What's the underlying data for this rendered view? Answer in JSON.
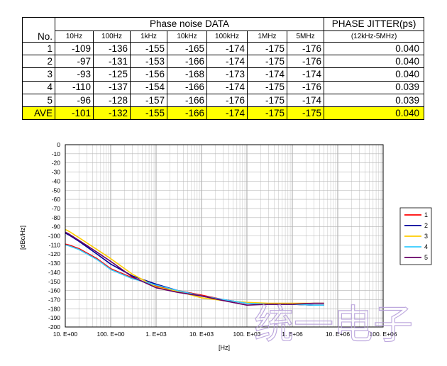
{
  "table": {
    "header_group": "Phase noise DATA",
    "no_label": "No.",
    "jitter_header": "PHASE JITTER(ps)",
    "jitter_range": "(12kHz-5MHz)",
    "columns": [
      "10Hz",
      "100Hz",
      "1kHz",
      "10kHz",
      "100kHz",
      "1MHz",
      "5MHz"
    ],
    "rows": [
      {
        "no": "1",
        "values": [
          "-109",
          "-136",
          "-155",
          "-165",
          "-174",
          "-175",
          "-176"
        ],
        "jitter": "0.040"
      },
      {
        "no": "2",
        "values": [
          "-97",
          "-131",
          "-153",
          "-166",
          "-174",
          "-175",
          "-176"
        ],
        "jitter": "0.040"
      },
      {
        "no": "3",
        "values": [
          "-93",
          "-125",
          "-156",
          "-168",
          "-173",
          "-174",
          "-174"
        ],
        "jitter": "0.040"
      },
      {
        "no": "4",
        "values": [
          "-110",
          "-137",
          "-154",
          "-166",
          "-174",
          "-175",
          "-176"
        ],
        "jitter": "0.039"
      },
      {
        "no": "5",
        "values": [
          "-96",
          "-128",
          "-157",
          "-166",
          "-176",
          "-175",
          "-174"
        ],
        "jitter": "0.039"
      },
      {
        "no": "AVE",
        "values": [
          "-101",
          "-132",
          "-155",
          "-166",
          "-174",
          "-175",
          "-175"
        ],
        "jitter": "0.040",
        "highlight": "#ffff00"
      }
    ]
  },
  "chart_data": {
    "type": "line",
    "xscale": "log",
    "xlim": [
      10,
      100000000
    ],
    "ylim": [
      -200,
      0
    ],
    "y_ticks": [
      "0",
      "-10",
      "-20",
      "-30",
      "-40",
      "-50",
      "-60",
      "-70",
      "-80",
      "-90",
      "-100",
      "-110",
      "-120",
      "-130",
      "-140",
      "-150",
      "-160",
      "-170",
      "-180",
      "-190",
      "-200"
    ],
    "x_ticks": [
      "10. E+00",
      "100. E+00",
      "1. E+03",
      "10. E+03",
      "100. E+03",
      "1. E+06",
      "10. E+06",
      "100. E+06"
    ],
    "xlabel": "[Hz]",
    "ylabel": "[dBc/Hz]",
    "grid": true,
    "legend_position": "right",
    "series": [
      {
        "name": "1",
        "color": "#ff0000",
        "x": [
          10,
          12,
          20,
          50,
          100,
          300,
          1000,
          3000,
          10000,
          30000,
          100000,
          300000,
          1000000,
          3000000,
          5000000
        ],
        "y": [
          -109,
          -110,
          -114,
          -125,
          -136,
          -146,
          -155,
          -160,
          -165,
          -170,
          -174,
          -175,
          -175,
          -176,
          -176
        ]
      },
      {
        "name": "2",
        "color": "#000099",
        "x": [
          10,
          12,
          20,
          50,
          100,
          300,
          1000,
          3000,
          10000,
          30000,
          100000,
          300000,
          1000000,
          3000000,
          5000000
        ],
        "y": [
          -97,
          -99,
          -106,
          -120,
          -131,
          -144,
          -153,
          -160,
          -166,
          -170,
          -174,
          -175,
          -175,
          -176,
          -176
        ]
      },
      {
        "name": "3",
        "color": "#ffcc00",
        "x": [
          10,
          12,
          20,
          50,
          100,
          300,
          1000,
          3000,
          10000,
          30000,
          100000,
          300000,
          1000000,
          3000000,
          5000000
        ],
        "y": [
          -93,
          -95,
          -102,
          -115,
          -125,
          -142,
          -156,
          -161,
          -168,
          -171,
          -173,
          -174,
          -174,
          -174,
          -174
        ]
      },
      {
        "name": "4",
        "color": "#33ccff",
        "x": [
          10,
          12,
          20,
          50,
          100,
          300,
          1000,
          3000,
          10000,
          30000,
          100000,
          300000,
          1000000,
          3000000,
          5000000
        ],
        "y": [
          -110,
          -111,
          -115,
          -126,
          -137,
          -147,
          -154,
          -160,
          -166,
          -170,
          -174,
          -175,
          -175,
          -176,
          -176
        ]
      },
      {
        "name": "5",
        "color": "#660066",
        "x": [
          10,
          12,
          20,
          50,
          100,
          300,
          1000,
          3000,
          10000,
          30000,
          100000,
          300000,
          1000000,
          3000000,
          5000000
        ],
        "y": [
          -96,
          -98,
          -105,
          -118,
          -128,
          -145,
          -157,
          -162,
          -166,
          -171,
          -176,
          -175,
          -175,
          -174,
          -174
        ]
      }
    ]
  },
  "watermark": {
    "text": "统一电子",
    "color": "#b39bd9"
  }
}
